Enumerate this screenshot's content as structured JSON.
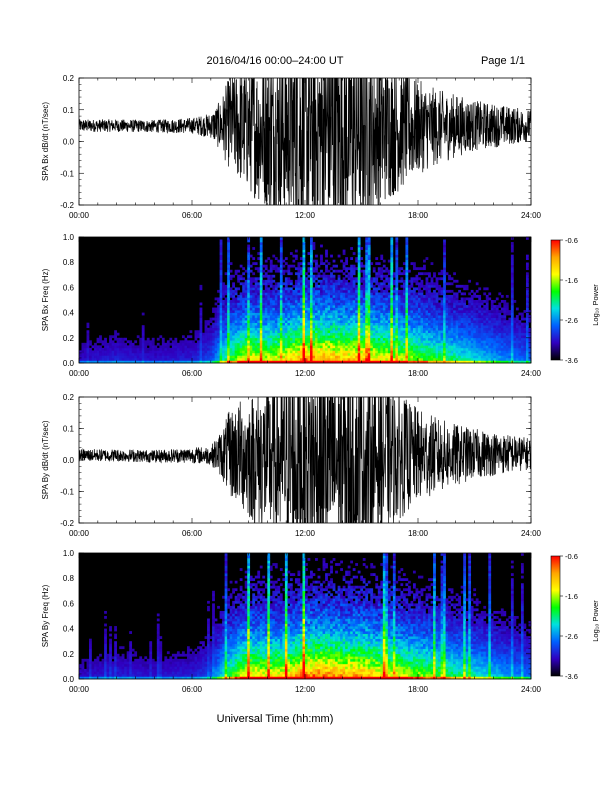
{
  "header": {
    "title": "2016/04/16  00:00–24:00 UT",
    "page": "Page 1/1"
  },
  "colorbar": {
    "label": "Log₁₀ Power",
    "ticks": [
      "-0.6",
      "-1.6",
      "-2.6",
      "-3.6"
    ],
    "colors": [
      "#ff0000",
      "#ffa500",
      "#ffff00",
      "#00ff00",
      "#00e0e0",
      "#0060ff",
      "#3000c0",
      "#000000"
    ]
  },
  "chart_data": [
    {
      "type": "line",
      "ylabel": "SPA Bx dB/dt (nT/sec)",
      "xlabel": "",
      "xticks": [
        "00:00",
        "06:00",
        "12:00",
        "18:00",
        "24:00"
      ],
      "yticks": [
        "0.2",
        "0.1",
        "0.0",
        "-0.1",
        "-0.2"
      ],
      "xlim": [
        0,
        24
      ],
      "ylim": [
        -0.2,
        0.2
      ],
      "x_unit": "hours UT",
      "envelope": {
        "hours": [
          0,
          2,
          4,
          6,
          7,
          7.5,
          8,
          8.5,
          9,
          10,
          11,
          12,
          13,
          14,
          15,
          16,
          17,
          18,
          19,
          20,
          21,
          22,
          23,
          24
        ],
        "center": [
          0.05,
          0.05,
          0.048,
          0.05,
          0.05,
          0.05,
          0.06,
          0.05,
          0.04,
          0.03,
          0.03,
          0.03,
          0.03,
          0.03,
          0.035,
          0.04,
          0.04,
          0.045,
          0.045,
          0.05,
          0.05,
          0.05,
          0.05,
          0.05
        ],
        "half_range": [
          0.02,
          0.02,
          0.02,
          0.025,
          0.04,
          0.08,
          0.15,
          0.18,
          0.2,
          0.25,
          0.3,
          0.35,
          0.35,
          0.35,
          0.3,
          0.25,
          0.2,
          0.15,
          0.12,
          0.1,
          0.08,
          0.07,
          0.06,
          0.05
        ]
      }
    },
    {
      "type": "heatmap",
      "ylabel": "SPA Bx Freq (Hz)",
      "xlabel": "",
      "xticks": [
        "00:00",
        "06:00",
        "12:00",
        "18:00",
        "24:00"
      ],
      "yticks": [
        "1.0",
        "0.8",
        "0.6",
        "0.4",
        "0.2",
        "0.0"
      ],
      "xlim": [
        0,
        24
      ],
      "ylim": [
        0,
        1.0
      ],
      "zlim": [
        -3.6,
        -0.6
      ],
      "activity": {
        "hours": [
          0,
          2,
          4,
          6,
          7,
          8,
          9,
          10,
          11,
          12,
          13,
          14,
          15,
          16,
          17,
          18,
          19,
          20,
          21,
          22,
          23,
          24
        ],
        "level": [
          0.12,
          0.15,
          0.13,
          0.15,
          0.2,
          0.45,
          0.6,
          0.55,
          0.6,
          0.7,
          0.7,
          0.65,
          0.65,
          0.6,
          0.55,
          0.5,
          0.45,
          0.4,
          0.35,
          0.3,
          0.25,
          0.22
        ]
      }
    },
    {
      "type": "line",
      "ylabel": "SPA By dB/dt (nT/sec)",
      "xlabel": "",
      "xticks": [
        "00:00",
        "06:00",
        "12:00",
        "18:00",
        "24:00"
      ],
      "yticks": [
        "0.2",
        "0.1",
        "0.0",
        "-0.1",
        "-0.2"
      ],
      "xlim": [
        0,
        24
      ],
      "ylim": [
        -0.2,
        0.2
      ],
      "x_unit": "hours UT",
      "envelope": {
        "hours": [
          0,
          2,
          4,
          6,
          7,
          7.5,
          8,
          8.5,
          9,
          10,
          11,
          12,
          13,
          14,
          15,
          16,
          17,
          18,
          19,
          20,
          21,
          22,
          23,
          24
        ],
        "center": [
          0.015,
          0.015,
          0.012,
          0.015,
          0.015,
          0.02,
          0.02,
          0.02,
          0.01,
          0.0,
          0.0,
          0.0,
          0.0,
          0.0,
          0.005,
          0.01,
          0.01,
          0.015,
          0.015,
          0.015,
          0.02,
          0.02,
          0.02,
          0.02
        ],
        "half_range": [
          0.02,
          0.02,
          0.02,
          0.025,
          0.03,
          0.07,
          0.14,
          0.17,
          0.2,
          0.25,
          0.3,
          0.35,
          0.35,
          0.35,
          0.3,
          0.25,
          0.2,
          0.15,
          0.12,
          0.1,
          0.08,
          0.07,
          0.06,
          0.05
        ]
      }
    },
    {
      "type": "heatmap",
      "ylabel": "SPA By Freq (Hz)",
      "xlabel": "Universal Time (hh:mm)",
      "xticks": [
        "00:00",
        "06:00",
        "12:00",
        "18:00",
        "24:00"
      ],
      "yticks": [
        "1.0",
        "0.8",
        "0.6",
        "0.4",
        "0.2",
        "0.0"
      ],
      "xlim": [
        0,
        24
      ],
      "ylim": [
        0,
        1.0
      ],
      "zlim": [
        -3.6,
        -0.6
      ],
      "activity": {
        "hours": [
          0,
          2,
          4,
          6,
          7,
          8,
          9,
          10,
          11,
          12,
          13,
          14,
          15,
          16,
          17,
          18,
          19,
          20,
          21,
          22,
          23,
          24
        ],
        "level": [
          0.12,
          0.15,
          0.13,
          0.15,
          0.2,
          0.45,
          0.62,
          0.58,
          0.62,
          0.72,
          0.72,
          0.68,
          0.68,
          0.62,
          0.58,
          0.52,
          0.47,
          0.42,
          0.37,
          0.32,
          0.27,
          0.24
        ]
      }
    }
  ]
}
